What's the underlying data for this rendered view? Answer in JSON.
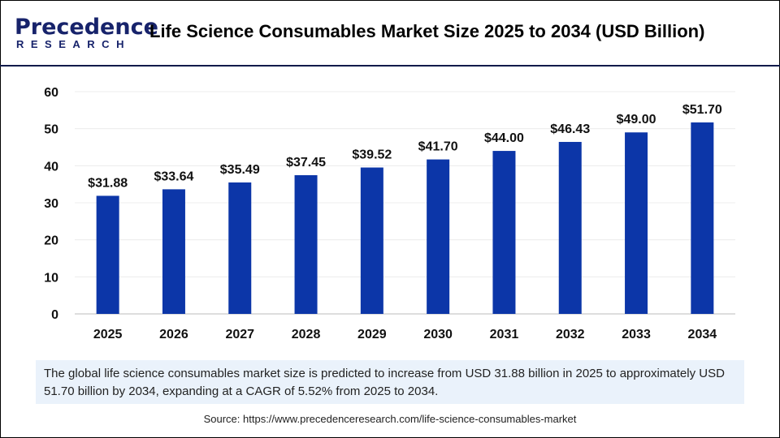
{
  "logo": {
    "line1": "Precedence",
    "line2": "RESEARCH"
  },
  "colors": {
    "bar": "#0c36a8",
    "header_rule": "#0d1a4a",
    "summary_bg": "#eaf2fb",
    "logo": "#17236b"
  },
  "summary": "The global life science consumables market size is predicted to increase from USD 31.88 billion in 2025 to approximately USD 51.70 billion by 2034, expanding at a CAGR of 5.52% from 2025 to 2034.",
  "source": "Source: https://www.precedenceresearch.com/life-science-consumables-market",
  "chart_data": {
    "type": "bar",
    "title": "Life Science Consumables Market Size 2025 to 2034 (USD Billion)",
    "categories": [
      "2025",
      "2026",
      "2027",
      "2028",
      "2029",
      "2030",
      "2031",
      "2032",
      "2033",
      "2034"
    ],
    "values": [
      31.88,
      33.64,
      35.49,
      37.45,
      39.52,
      41.7,
      44.0,
      46.43,
      49.0,
      51.7
    ],
    "data_labels": [
      "$31.88",
      "$33.64",
      "$35.49",
      "$37.45",
      "$39.52",
      "$41.70",
      "$44.00",
      "$46.43",
      "$49.00",
      "$51.70"
    ],
    "yticks": [
      "0",
      "10",
      "20",
      "30",
      "40",
      "50",
      "60"
    ],
    "ylim": [
      0,
      60
    ],
    "grid": true,
    "legend": "none"
  }
}
